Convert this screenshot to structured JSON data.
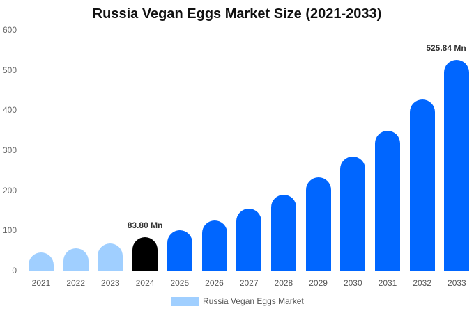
{
  "chart_data": {
    "type": "bar",
    "title": "Russia Vegan Eggs Market Size (2021-2033)",
    "xlabel": "",
    "ylabel": "",
    "ylim": [
      0,
      600
    ],
    "yticks": [
      0,
      100,
      200,
      300,
      400,
      500,
      600
    ],
    "grid": false,
    "legend_position": "bottom",
    "categories": [
      "2021",
      "2022",
      "2023",
      "2024",
      "2025",
      "2026",
      "2027",
      "2028",
      "2029",
      "2030",
      "2031",
      "2032",
      "2033"
    ],
    "series": [
      {
        "name": "Russia Vegan Eggs Market",
        "values": [
          45,
          55,
          68,
          83.8,
          101,
          125,
          154,
          189,
          232,
          284,
          349,
          427,
          525.84
        ]
      }
    ],
    "bar_colors": [
      "#a0cfff",
      "#a0cfff",
      "#a0cfff",
      "#000000",
      "#0066ff",
      "#0066ff",
      "#0066ff",
      "#0066ff",
      "#0066ff",
      "#0066ff",
      "#0066ff",
      "#0066ff",
      "#0066ff"
    ],
    "annotations": [
      {
        "category": "2024",
        "text": "83.80 Mn"
      },
      {
        "category": "2033",
        "text": "525.84 Mn"
      }
    ],
    "legend": [
      {
        "label": "Russia Vegan Eggs Market",
        "color": "#a0cfff"
      }
    ]
  }
}
